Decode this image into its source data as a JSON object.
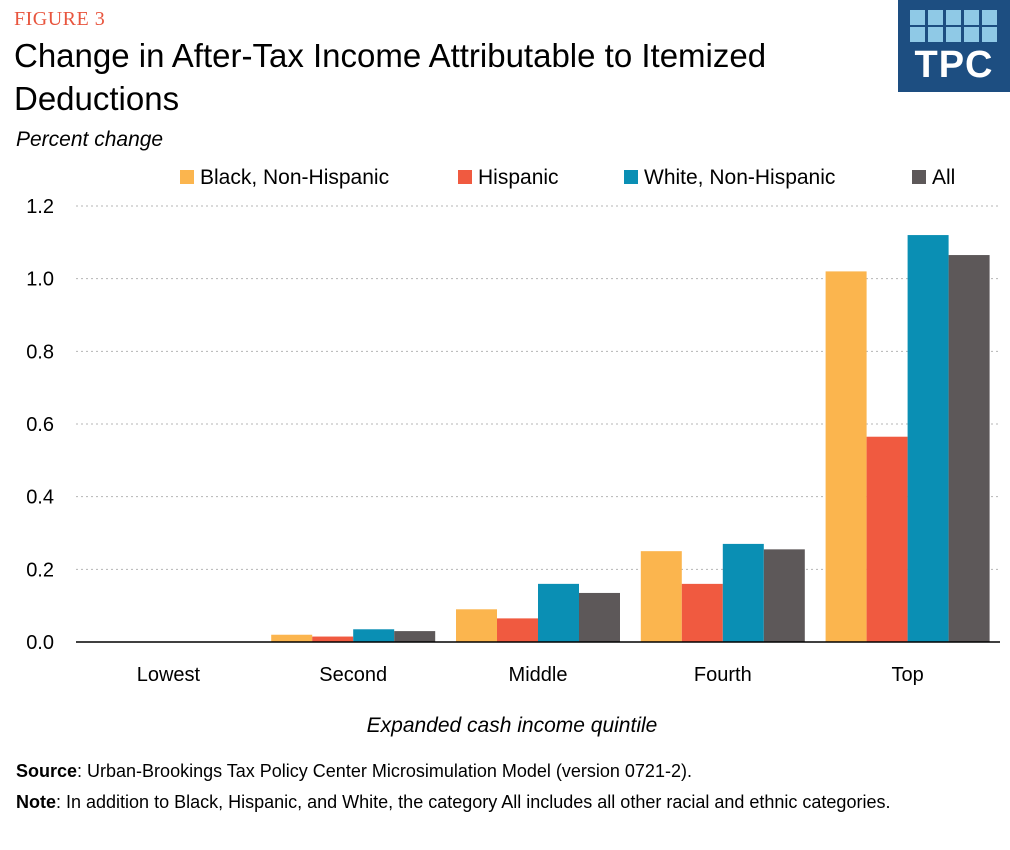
{
  "figure_label": "FIGURE 3",
  "logo_text": "TPC",
  "footer": {
    "source_label": "Source",
    "source_text": ": Urban-Brookings Tax Policy Center Microsimulation Model (version 0721-2).",
    "note_label": "Note",
    "note_text": ": In addition to Black, Hispanic, and White, the category All includes all other racial and ethnic categories."
  },
  "colors": {
    "black_nh": "#fbb54e",
    "hispanic": "#f05a40",
    "white_nh": "#0a8fb4",
    "all": "#5d5859",
    "logo_bg": "#1d4e81",
    "logo_cells": "#8fc9e6"
  },
  "chart_data": {
    "type": "bar",
    "title": "Change in After-Tax Income Attributable to Itemized Deductions",
    "ylabel": "Percent change",
    "xlabel": "Expanded cash income quintile",
    "categories": [
      "Lowest",
      "Second",
      "Middle",
      "Fourth",
      "Top"
    ],
    "series": [
      {
        "name": "Black, Non-Hispanic",
        "color": "#fbb54e",
        "values": [
          0.0,
          0.02,
          0.09,
          0.25,
          1.02
        ]
      },
      {
        "name": "Hispanic",
        "color": "#f05a40",
        "values": [
          0.0,
          0.015,
          0.065,
          0.16,
          0.565
        ]
      },
      {
        "name": "White, Non-Hispanic",
        "color": "#0a8fb4",
        "values": [
          0.0,
          0.035,
          0.16,
          0.27,
          1.12
        ]
      },
      {
        "name": "All",
        "color": "#5d5859",
        "values": [
          0.0,
          0.03,
          0.135,
          0.255,
          1.065
        ]
      }
    ],
    "yticks": [
      "0.0",
      "0.2",
      "0.4",
      "0.6",
      "0.8",
      "1.0",
      "1.2"
    ],
    "ylim": [
      0,
      1.2
    ],
    "grid": true,
    "legend_position": "top"
  }
}
